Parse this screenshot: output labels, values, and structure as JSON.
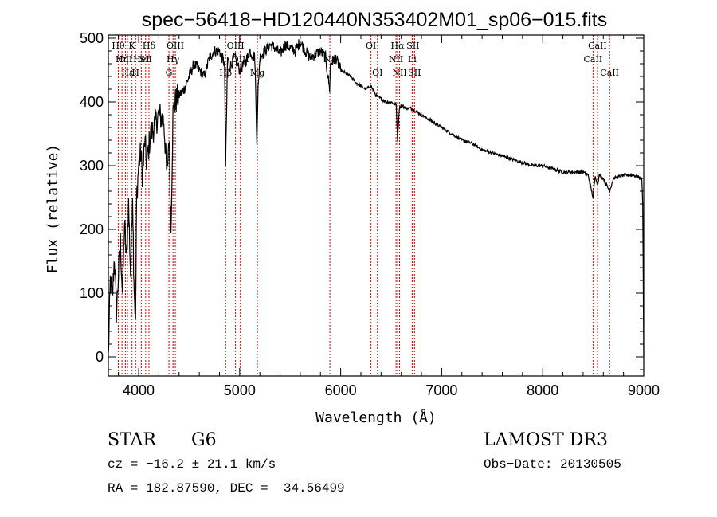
{
  "chart_data": {
    "type": "line",
    "title": "spec−56418−HD120440N353402M01_sp06−015.fits",
    "xlabel": "Wavelength (Å)",
    "ylabel": "Flux (relative)",
    "xlim": [
      3700,
      9000
    ],
    "ylim": [
      -30,
      505
    ],
    "xticks": [
      4000,
      5000,
      6000,
      7000,
      8000,
      9000
    ],
    "yticks": [
      0,
      100,
      200,
      300,
      400,
      500
    ],
    "grid": false,
    "line_color": "#000000",
    "marker_color": "#cc0000",
    "series": [
      {
        "name": "flux",
        "x": [
          3700,
          3720,
          3740,
          3760,
          3780,
          3800,
          3820,
          3840,
          3860,
          3880,
          3900,
          3920,
          3940,
          3950,
          3960,
          3970,
          3980,
          4000,
          4020,
          4040,
          4060,
          4080,
          4100,
          4120,
          4150,
          4200,
          4250,
          4280,
          4300,
          4320,
          4340,
          4360,
          4400,
          4450,
          4500,
          4550,
          4600,
          4650,
          4700,
          4750,
          4800,
          4850,
          4861,
          4880,
          4900,
          4950,
          5000,
          5050,
          5100,
          5150,
          5170,
          5183,
          5200,
          5250,
          5300,
          5350,
          5400,
          5450,
          5500,
          5550,
          5600,
          5650,
          5700,
          5750,
          5800,
          5850,
          5890,
          5900,
          5950,
          6000,
          6050,
          6100,
          6150,
          6200,
          6250,
          6300,
          6350,
          6400,
          6450,
          6500,
          6550,
          6563,
          6580,
          6600,
          6650,
          6700,
          6750,
          6800,
          6850,
          6900,
          7000,
          7100,
          7200,
          7300,
          7400,
          7500,
          7600,
          7700,
          7800,
          7900,
          8000,
          8100,
          8200,
          8300,
          8400,
          8450,
          8498,
          8520,
          8542,
          8560,
          8600,
          8662,
          8700,
          8800,
          8900,
          8980,
          8990,
          9000
        ],
        "y": [
          0,
          120,
          90,
          160,
          70,
          130,
          180,
          100,
          210,
          150,
          240,
          130,
          260,
          150,
          90,
          60,
          250,
          300,
          320,
          280,
          340,
          300,
          330,
          350,
          360,
          380,
          370,
          280,
          350,
          200,
          380,
          400,
          410,
          420,
          440,
          460,
          450,
          440,
          470,
          480,
          480,
          460,
          300,
          470,
          455,
          470,
          450,
          460,
          480,
          470,
          340,
          420,
          470,
          480,
          490,
          485,
          475,
          490,
          485,
          480,
          495,
          480,
          470,
          475,
          480,
          470,
          420,
          460,
          470,
          450,
          445,
          440,
          430,
          425,
          420,
          425,
          410,
          405,
          400,
          400,
          395,
          340,
          390,
          395,
          390,
          390,
          385,
          380,
          375,
          370,
          360,
          350,
          340,
          335,
          325,
          320,
          315,
          310,
          305,
          300,
          300,
          295,
          290,
          290,
          290,
          285,
          250,
          285,
          270,
          285,
          280,
          260,
          280,
          285,
          285,
          280,
          240,
          0
        ]
      }
    ],
    "spectral_lines": [
      {
        "wavelength": 3798,
        "label": "Hθ",
        "row": 0
      },
      {
        "wavelength": 3835,
        "label": "Hη",
        "row": 1
      },
      {
        "wavelength": 3869,
        "label": "OII",
        "row": 1
      },
      {
        "wavelength": 3889,
        "label": "Hε",
        "row": 2
      },
      {
        "wavelength": 3934,
        "label": "K",
        "row": 0
      },
      {
        "wavelength": 3970,
        "label": "H",
        "row": 2
      },
      {
        "wavelength": 4026,
        "label": "HeI",
        "row": 1
      },
      {
        "wavelength": 4069,
        "label": "SII",
        "row": 1
      },
      {
        "wavelength": 4102,
        "label": "Hδ",
        "row": 0
      },
      {
        "wavelength": 4300,
        "label": "G",
        "row": 2
      },
      {
        "wavelength": 4340,
        "label": "Hγ",
        "row": 1
      },
      {
        "wavelength": 4363,
        "label": "OIII",
        "row": 0
      },
      {
        "wavelength": 4861,
        "label": "Hβ",
        "row": 2
      },
      {
        "wavelength": 4959,
        "label": "OIII",
        "row": 0
      },
      {
        "wavelength": 5007,
        "label": "OIII",
        "row": 1
      },
      {
        "wavelength": 5175,
        "label": "Mg",
        "row": 2
      },
      {
        "wavelength": 5893,
        "label": "Na",
        "row": 1
      },
      {
        "wavelength": 6300,
        "label": "OI",
        "row": 0
      },
      {
        "wavelength": 6364,
        "label": "OI",
        "row": 2
      },
      {
        "wavelength": 6548,
        "label": "NII",
        "row": 1
      },
      {
        "wavelength": 6563,
        "label": "Hα",
        "row": 0
      },
      {
        "wavelength": 6583,
        "label": "NII",
        "row": 2
      },
      {
        "wavelength": 6708,
        "label": "Li",
        "row": 1
      },
      {
        "wavelength": 6716,
        "label": "SII",
        "row": 0
      },
      {
        "wavelength": 6731,
        "label": "SII",
        "row": 2
      },
      {
        "wavelength": 8498,
        "label": "CaII",
        "row": 1
      },
      {
        "wavelength": 8542,
        "label": "CaII",
        "row": 0
      },
      {
        "wavelength": 8662,
        "label": "CaII",
        "row": 2
      }
    ]
  },
  "info": {
    "object_class": "STAR",
    "subclass": "G6",
    "survey": "LAMOST DR3",
    "cz": "cz = −16.2 ± 21.1 km/s",
    "obs_date": "Obs−Date: 20130505",
    "coords": "RA = 182.87590, DEC =  34.56499"
  }
}
